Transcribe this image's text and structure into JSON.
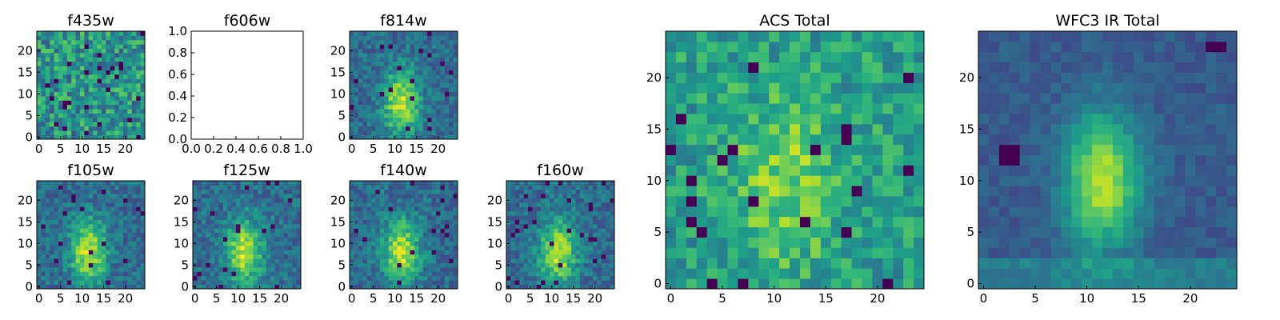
{
  "chart_data": [
    {
      "type": "heatmap",
      "title": "f435w",
      "colormap": "viridis",
      "size": 25,
      "xticks": [
        "0",
        "5",
        "10",
        "15",
        "20"
      ],
      "yticks": [
        "0",
        "5",
        "10",
        "15",
        "20"
      ],
      "pattern": "noise",
      "seed": 11
    },
    {
      "type": "heatmap",
      "title": "f606w",
      "empty": true,
      "xlim": [
        0,
        1
      ],
      "ylim": [
        0,
        1
      ],
      "xticks": [
        "0.0",
        "0.2",
        "0.4",
        "0.6",
        "0.8",
        "1.0"
      ],
      "yticks": [
        "0.0",
        "0.2",
        "0.4",
        "0.6",
        "0.8",
        "1.0"
      ]
    },
    {
      "type": "heatmap",
      "title": "f814w",
      "colormap": "viridis",
      "size": 25,
      "xticks": [
        "0",
        "5",
        "10",
        "15",
        "20"
      ],
      "yticks": [
        "0",
        "5",
        "10",
        "15",
        "20"
      ],
      "pattern": "blob",
      "seed": 23
    },
    {
      "type": "heatmap",
      "title": "f105w",
      "colormap": "viridis",
      "size": 25,
      "xticks": [
        "0",
        "5",
        "10",
        "15",
        "20"
      ],
      "yticks": [
        "0",
        "5",
        "10",
        "15",
        "20"
      ],
      "pattern": "blob",
      "seed": 37
    },
    {
      "type": "heatmap",
      "title": "f125w",
      "colormap": "viridis",
      "size": 25,
      "xticks": [
        "0",
        "5",
        "10",
        "15",
        "20"
      ],
      "yticks": [
        "0",
        "5",
        "10",
        "15",
        "20"
      ],
      "pattern": "blob",
      "seed": 41
    },
    {
      "type": "heatmap",
      "title": "f140w",
      "colormap": "viridis",
      "size": 25,
      "xticks": [
        "0",
        "5",
        "10",
        "15",
        "20"
      ],
      "yticks": [
        "0",
        "5",
        "10",
        "15",
        "20"
      ],
      "pattern": "blob",
      "seed": 53
    },
    {
      "type": "heatmap",
      "title": "f160w",
      "colormap": "viridis",
      "size": 25,
      "xticks": [
        "0",
        "5",
        "10",
        "15",
        "20"
      ],
      "yticks": [
        "0",
        "5",
        "10",
        "15",
        "20"
      ],
      "pattern": "blob",
      "seed": 67
    },
    {
      "type": "heatmap",
      "title": "ACS Total",
      "colormap": "viridis",
      "size": 25,
      "xticks": [
        "0",
        "5",
        "10",
        "15",
        "20"
      ],
      "yticks": [
        "0",
        "5",
        "10",
        "15",
        "20"
      ],
      "pattern": "acs",
      "seed": 79
    },
    {
      "type": "heatmap",
      "title": "WFC3 IR Total",
      "colormap": "viridis",
      "size": 25,
      "xticks": [
        "0",
        "5",
        "10",
        "15",
        "20"
      ],
      "yticks": [
        "0",
        "5",
        "10",
        "15",
        "20"
      ],
      "pattern": "ir",
      "seed": 97
    }
  ]
}
